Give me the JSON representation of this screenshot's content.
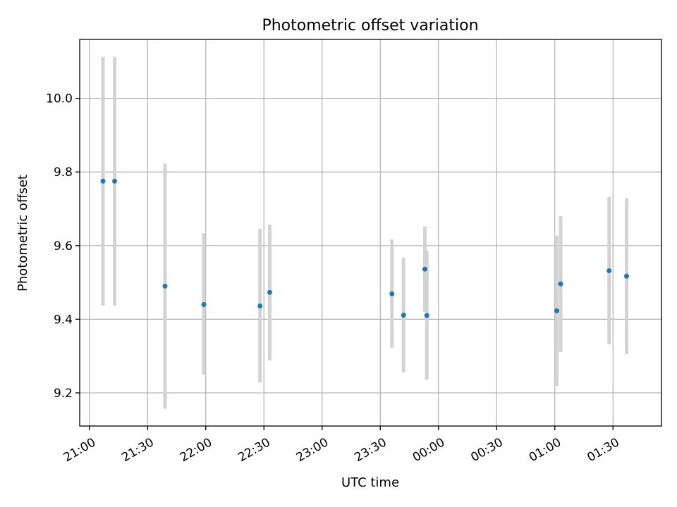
{
  "chart_data": {
    "type": "scatter",
    "title": "Photometric offset variation",
    "xlabel": "UTC time",
    "ylabel": "Photometric offset",
    "x_axis_type": "time",
    "xlim": [
      "20:55",
      "01:55"
    ],
    "ylim": [
      9.11,
      10.16
    ],
    "x_ticks": [
      "21:00",
      "21:30",
      "22:00",
      "22:30",
      "23:00",
      "23:30",
      "00:00",
      "00:30",
      "01:00",
      "01:30"
    ],
    "y_ticks": [
      9.2,
      9.4,
      9.6,
      9.8,
      10.0
    ],
    "grid": true,
    "marker_color": "#1f77b4",
    "errorbar_color": "#d3d3d3",
    "series": [
      {
        "points": [
          {
            "t": "21:07",
            "y": 9.775,
            "ylow": 9.437,
            "yhigh": 10.113
          },
          {
            "t": "21:13",
            "y": 9.775,
            "ylow": 9.437,
            "yhigh": 10.113
          },
          {
            "t": "21:39",
            "y": 9.49,
            "ylow": 9.157,
            "yhigh": 9.823
          },
          {
            "t": "21:59",
            "y": 9.44,
            "ylow": 9.25,
            "yhigh": 9.634
          },
          {
            "t": "22:28",
            "y": 9.436,
            "ylow": 9.228,
            "yhigh": 9.646
          },
          {
            "t": "22:33",
            "y": 9.473,
            "ylow": 9.288,
            "yhigh": 9.657
          },
          {
            "t": "23:36",
            "y": 9.469,
            "ylow": 9.322,
            "yhigh": 9.617
          },
          {
            "t": "23:42",
            "y": 9.411,
            "ylow": 9.256,
            "yhigh": 9.567
          },
          {
            "t": "23:53",
            "y": 9.536,
            "ylow": 9.42,
            "yhigh": 9.652
          },
          {
            "t": "23:54",
            "y": 9.41,
            "ylow": 9.236,
            "yhigh": 9.586
          },
          {
            "t": "01:01",
            "y": 9.423,
            "ylow": 9.219,
            "yhigh": 9.627
          },
          {
            "t": "01:03",
            "y": 9.496,
            "ylow": 9.311,
            "yhigh": 9.68
          },
          {
            "t": "01:28",
            "y": 9.532,
            "ylow": 9.332,
            "yhigh": 9.732
          },
          {
            "t": "01:37",
            "y": 9.517,
            "ylow": 9.305,
            "yhigh": 9.729
          }
        ]
      }
    ]
  }
}
